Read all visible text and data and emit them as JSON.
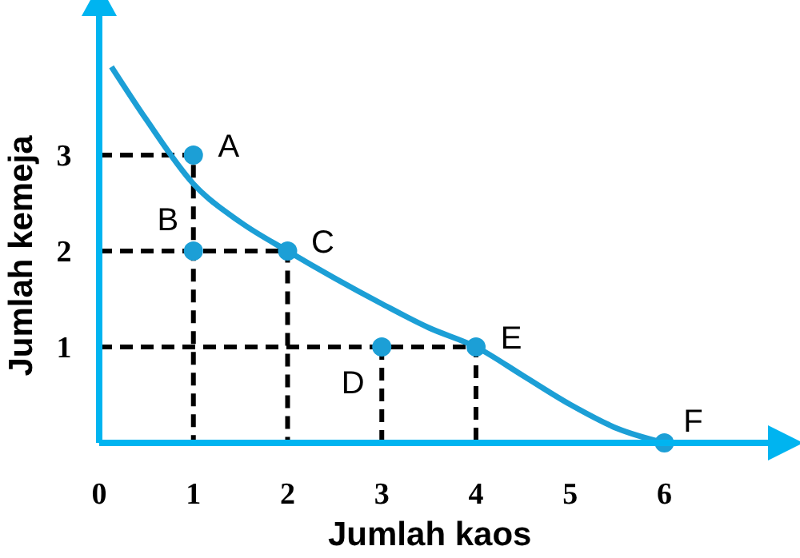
{
  "chart_data": {
    "type": "line",
    "xlabel": "Jumlah kaos",
    "ylabel": "Jumlah kemeja",
    "xlim": [
      0,
      7.1
    ],
    "ylim": [
      0,
      4.45
    ],
    "xticks": [
      0,
      1,
      2,
      3,
      4,
      5,
      6
    ],
    "yticks": [
      1,
      2,
      3
    ],
    "grid": false,
    "series": [
      {
        "type": "line",
        "color": "#000000",
        "line_style": "dashed",
        "marker": "none",
        "x": [
          0,
          1,
          1
        ],
        "values": [
          3,
          3,
          0
        ]
      },
      {
        "type": "line",
        "color": "#000000",
        "line_style": "dashed",
        "marker": "none",
        "x": [
          0,
          2,
          2
        ],
        "values": [
          2,
          2,
          0
        ]
      },
      {
        "type": "line",
        "color": "#000000",
        "line_style": "dashed",
        "marker": "none",
        "x": [
          0,
          4,
          4
        ],
        "values": [
          1,
          1,
          0
        ]
      },
      {
        "type": "line",
        "color": "#000000",
        "line_style": "dashed",
        "marker": "none",
        "x": [
          3,
          3
        ],
        "values": [
          1,
          0
        ]
      },
      {
        "color": "#1c9fd6",
        "line_style": "solid",
        "marker": "none",
        "x": [
          0.13,
          0.5,
          1,
          1.5,
          2,
          3,
          3.5,
          4,
          4.5,
          5,
          5.5,
          6
        ],
        "values": [
          3.92,
          3.37,
          2.7,
          2.3,
          2,
          1.45,
          1.2,
          1,
          0.7,
          0.4,
          0.15,
          0
        ]
      },
      {
        "type": "scatter",
        "color": "#1c9fd6",
        "marker": "circle",
        "x": [
          1,
          1,
          2,
          3,
          4,
          6
        ],
        "values": [
          3,
          2,
          2,
          1,
          1,
          0
        ]
      }
    ],
    "annotations": [
      {
        "text": "A",
        "x": 1,
        "y": 3
      },
      {
        "text": "B",
        "x": 1,
        "y": 2
      },
      {
        "text": "C",
        "x": 2,
        "y": 2
      },
      {
        "text": "D",
        "x": 3,
        "y": 1
      },
      {
        "text": "E",
        "x": 4,
        "y": 1
      },
      {
        "text": "F",
        "x": 6,
        "y": 0
      }
    ]
  }
}
